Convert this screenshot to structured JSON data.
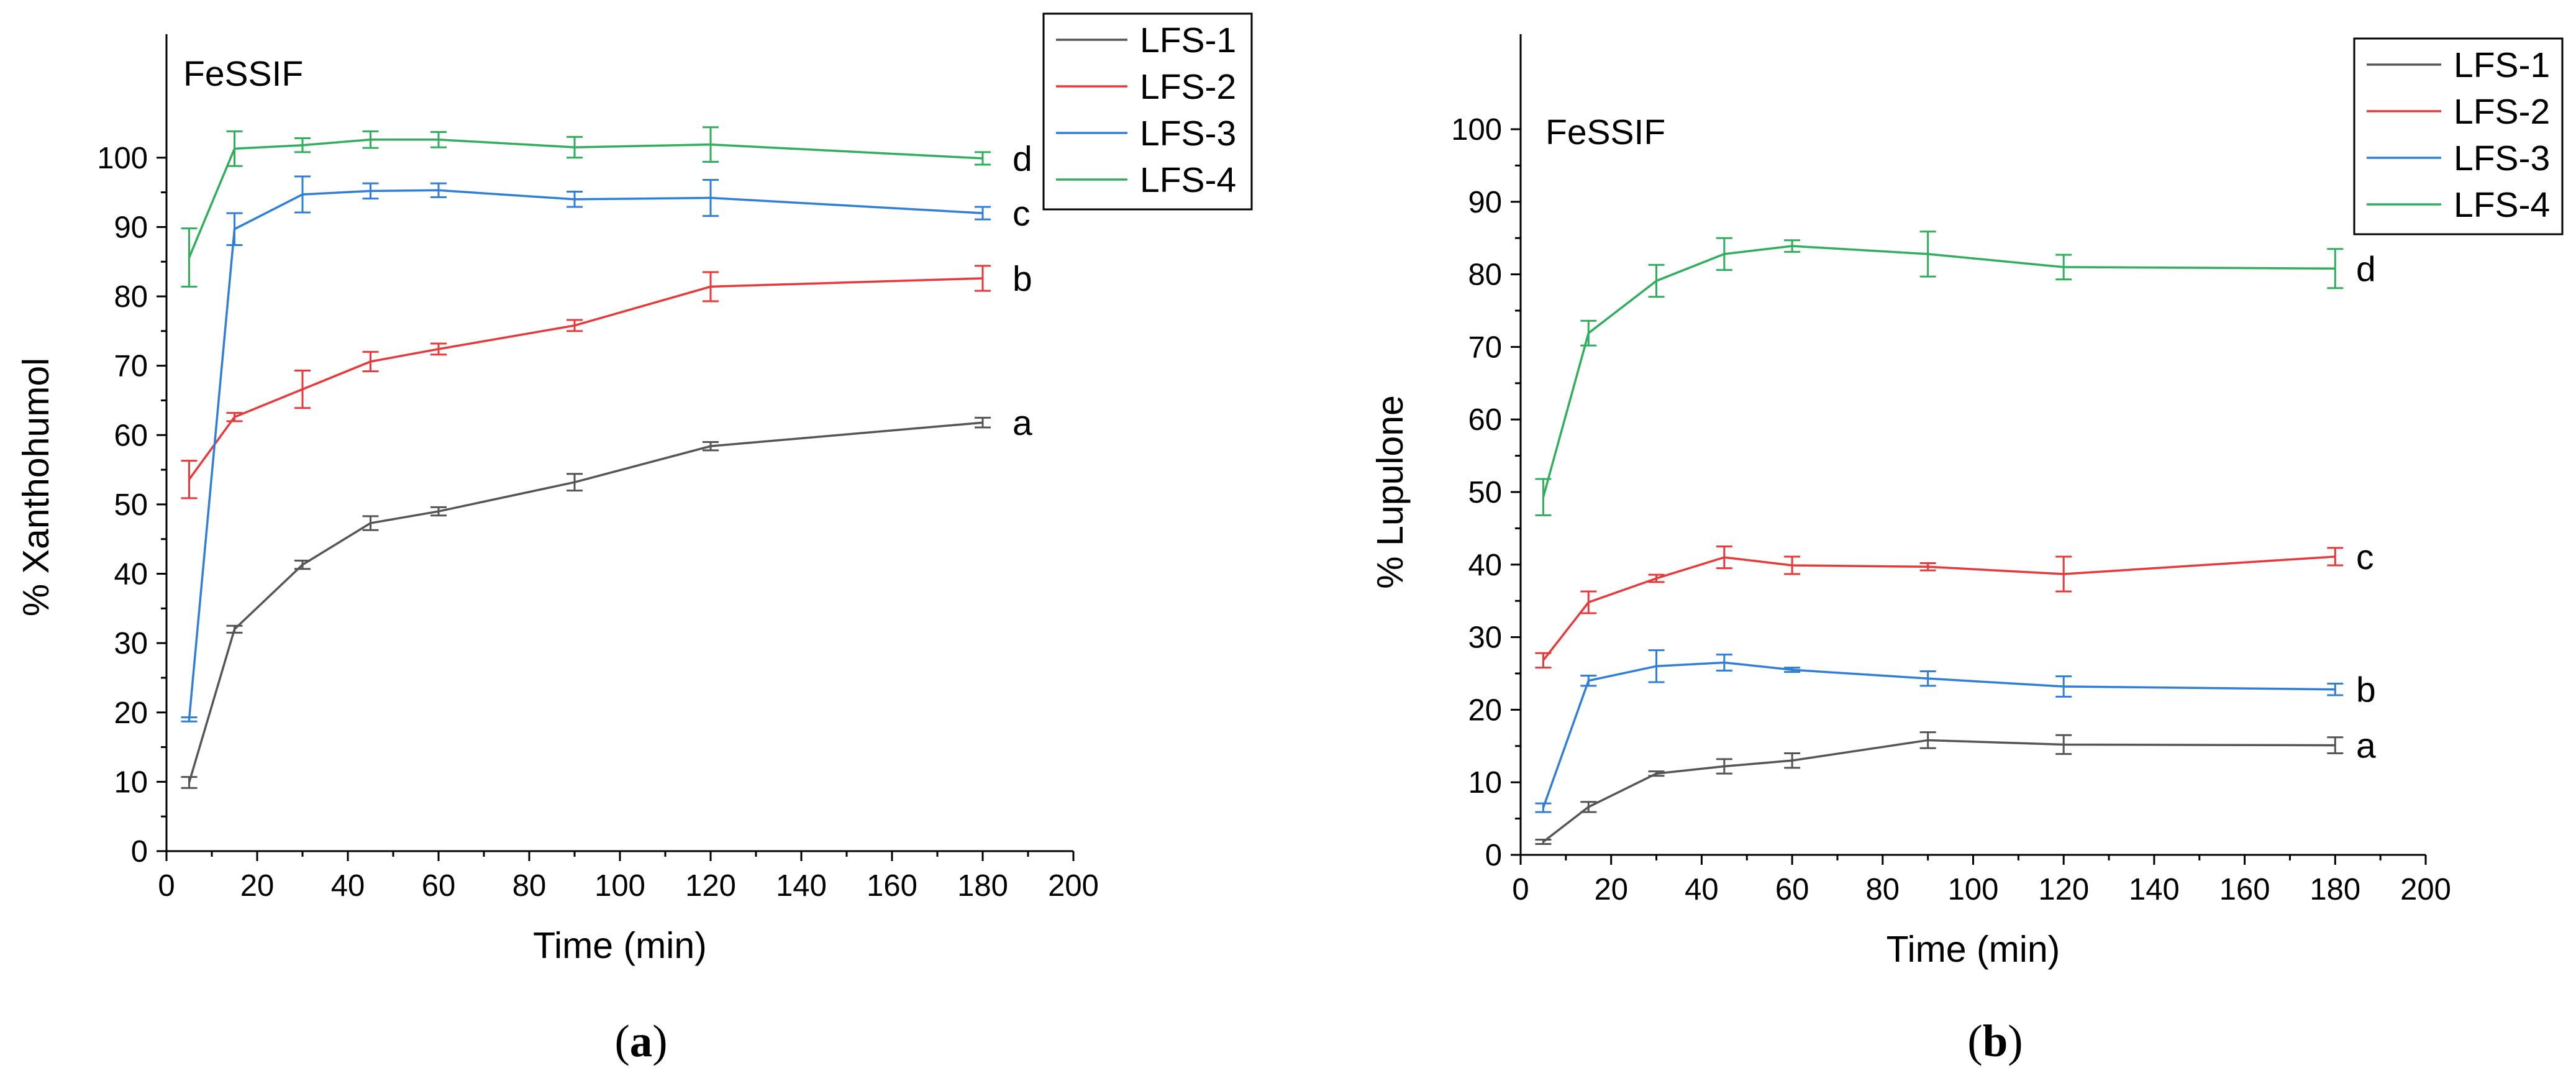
{
  "chart_data": [
    {
      "type": "line",
      "panel_title": "FeSSIF",
      "xlabel": "Time (min)",
      "ylabel": "% Xanthohumol",
      "xlim": [
        0,
        200
      ],
      "ylim": [
        0,
        105
      ],
      "xticks": [
        0,
        20,
        40,
        60,
        80,
        100,
        120,
        140,
        160,
        180,
        200
      ],
      "yticks": [
        0,
        10,
        20,
        30,
        40,
        50,
        60,
        70,
        80,
        90,
        100
      ],
      "legend_position": "top-right",
      "x": [
        5,
        15,
        30,
        45,
        60,
        90,
        120,
        180
      ],
      "series": [
        {
          "name": "LFS-1",
          "color": "#555555",
          "values": [
            9.9,
            32.0,
            41.3,
            47.3,
            49.0,
            53.2,
            58.4,
            61.8
          ],
          "errors": [
            0.8,
            0.5,
            0.6,
            1.0,
            0.6,
            1.2,
            0.6,
            0.7
          ]
        },
        {
          "name": "LFS-2",
          "color": "#e8393a",
          "values": [
            53.6,
            62.6,
            66.6,
            70.6,
            72.4,
            75.8,
            81.4,
            82.6
          ],
          "errors": [
            2.7,
            0.6,
            2.7,
            1.4,
            0.8,
            0.8,
            2.1,
            1.8
          ]
        },
        {
          "name": "LFS-3",
          "color": "#2f7ed8",
          "values": [
            19.0,
            89.7,
            94.7,
            95.2,
            95.3,
            94.0,
            94.2,
            92.0
          ],
          "errors": [
            0.3,
            2.3,
            2.6,
            1.1,
            1.0,
            1.1,
            2.6,
            0.9
          ]
        },
        {
          "name": "LFS-4",
          "color": "#2fae5b",
          "values": [
            85.6,
            101.3,
            101.8,
            102.6,
            102.6,
            101.5,
            101.9,
            99.9
          ],
          "errors": [
            4.2,
            2.5,
            1.0,
            1.2,
            1.1,
            1.5,
            2.5,
            0.9
          ]
        }
      ],
      "annotations": [
        {
          "text": "d",
          "series": "LFS-4"
        },
        {
          "text": "c",
          "series": "LFS-3"
        },
        {
          "text": "b",
          "series": "LFS-2"
        },
        {
          "text": "a",
          "series": "LFS-1"
        }
      ],
      "sub_label_parts": [
        "(",
        "a",
        ")"
      ]
    },
    {
      "type": "line",
      "panel_title": "FeSSIF",
      "xlabel": "Time (min)",
      "ylabel": "% Lupulone",
      "xlim": [
        0,
        200
      ],
      "ylim": [
        0,
        100
      ],
      "xticks": [
        0,
        20,
        40,
        60,
        80,
        100,
        120,
        140,
        160,
        180,
        200
      ],
      "yticks": [
        0,
        10,
        20,
        30,
        40,
        50,
        60,
        70,
        80,
        90,
        100
      ],
      "legend_position": "top-right",
      "x": [
        5,
        15,
        30,
        45,
        60,
        90,
        120,
        180
      ],
      "series": [
        {
          "name": "LFS-1",
          "color": "#555555",
          "values": [
            1.8,
            6.6,
            11.2,
            12.2,
            13.0,
            15.8,
            15.2,
            15.1
          ],
          "errors": [
            0.3,
            0.7,
            0.3,
            1.0,
            1.0,
            1.1,
            1.3,
            1.1
          ]
        },
        {
          "name": "LFS-2",
          "color": "#e8393a",
          "values": [
            26.8,
            34.8,
            38.1,
            41.0,
            39.9,
            39.7,
            38.7,
            41.1
          ],
          "errors": [
            1.0,
            1.5,
            0.5,
            1.5,
            1.2,
            0.5,
            2.4,
            1.2
          ]
        },
        {
          "name": "LFS-3",
          "color": "#2f7ed8",
          "values": [
            6.5,
            24.0,
            26.0,
            26.5,
            25.5,
            24.3,
            23.2,
            22.8
          ],
          "errors": [
            0.6,
            0.7,
            2.2,
            1.1,
            0.3,
            1.0,
            1.4,
            0.8
          ]
        },
        {
          "name": "LFS-4",
          "color": "#2fae5b",
          "values": [
            49.3,
            71.9,
            79.1,
            82.8,
            83.9,
            82.8,
            81.0,
            80.8
          ],
          "errors": [
            2.5,
            1.7,
            2.2,
            2.2,
            0.8,
            3.1,
            1.7,
            2.7
          ]
        }
      ],
      "annotations": [
        {
          "text": "d",
          "series": "LFS-4"
        },
        {
          "text": "c",
          "series": "LFS-2"
        },
        {
          "text": "b",
          "series": "LFS-3"
        },
        {
          "text": "a",
          "series": "LFS-1"
        }
      ],
      "sub_label_parts": [
        "(",
        "b",
        ")"
      ]
    }
  ]
}
